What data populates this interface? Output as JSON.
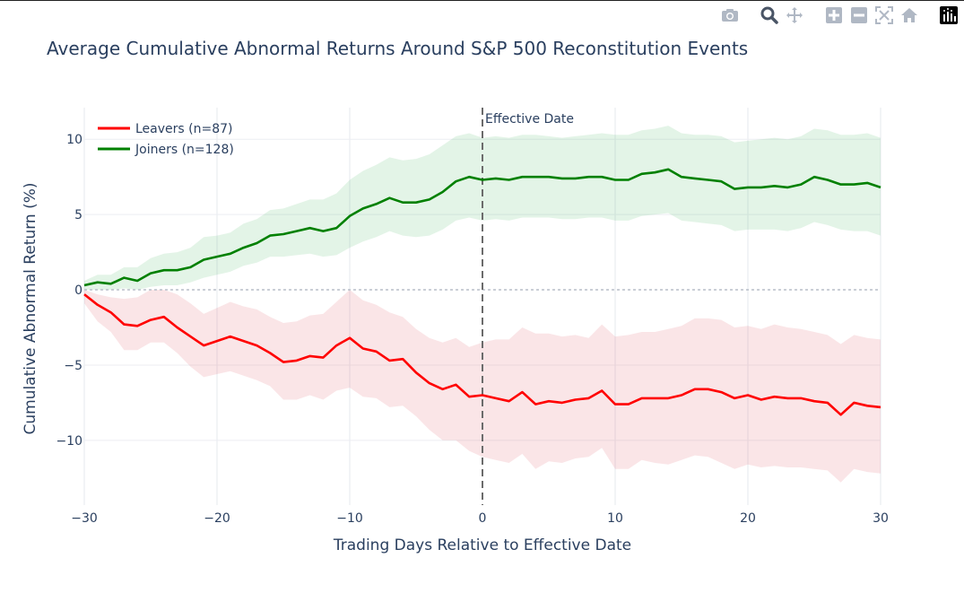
{
  "modebar": {
    "buttons": [
      {
        "icon": "camera-icon",
        "name": "download-plot-button"
      },
      {
        "icon": "zoom-icon",
        "name": "zoom-button"
      },
      {
        "icon": "pan-icon",
        "name": "pan-button"
      },
      {
        "icon": "zoom-in-icon",
        "name": "zoom-in-button"
      },
      {
        "icon": "zoom-out-icon",
        "name": "zoom-out-button"
      },
      {
        "icon": "autoscale-icon",
        "name": "autoscale-button"
      },
      {
        "icon": "home-icon",
        "name": "reset-axes-button"
      },
      {
        "icon": "plotly-logo-icon",
        "name": "plotly-logo"
      }
    ]
  },
  "chart_data": {
    "type": "line",
    "title": "Average Cumulative Abnormal Returns Around S&P 500 Reconstitution Events",
    "xlabel": "Trading Days Relative to Effective Date",
    "ylabel": "Cumulative Abnormal Return (%)",
    "xlim": [
      -30,
      30
    ],
    "ylim": [
      -14.3,
      12.1
    ],
    "xticks": [
      -30,
      -20,
      -10,
      0,
      10,
      20,
      30
    ],
    "xtick_labels": [
      "−30",
      "−20",
      "−10",
      "0",
      "10",
      "20",
      "30"
    ],
    "yticks": [
      -10,
      -5,
      0,
      5,
      10
    ],
    "ytick_labels": [
      "−10",
      "−5",
      "0",
      "5",
      "10"
    ],
    "grid": true,
    "legend_position": "top-left",
    "annotation": {
      "text": "Effective Date",
      "x": 0
    },
    "zero_line": true,
    "x": [
      -30,
      -29,
      -28,
      -27,
      -26,
      -25,
      -24,
      -23,
      -22,
      -21,
      -20,
      -19,
      -18,
      -17,
      -16,
      -15,
      -14,
      -13,
      -12,
      -11,
      -10,
      -9,
      -8,
      -7,
      -6,
      -5,
      -4,
      -3,
      -2,
      -1,
      0,
      1,
      2,
      3,
      4,
      5,
      6,
      7,
      8,
      9,
      10,
      11,
      12,
      13,
      14,
      15,
      16,
      17,
      18,
      19,
      20,
      21,
      22,
      23,
      24,
      25,
      26,
      27,
      28,
      29,
      30
    ],
    "series": [
      {
        "name": "Leavers (n=87)",
        "color": "#ff0000",
        "band_color": "rgba(220,53,69,0.13)",
        "values": [
          -0.3,
          -1.0,
          -1.5,
          -2.3,
          -2.4,
          -2.0,
          -1.8,
          -2.5,
          -3.1,
          -3.7,
          -3.4,
          -3.1,
          -3.4,
          -3.7,
          -4.2,
          -4.8,
          -4.7,
          -4.4,
          -4.5,
          -3.7,
          -3.2,
          -3.9,
          -4.1,
          -4.7,
          -4.6,
          -5.5,
          -6.2,
          -6.6,
          -6.3,
          -7.1,
          -7.0,
          -7.2,
          -7.4,
          -6.8,
          -7.6,
          -7.4,
          -7.5,
          -7.3,
          -7.2,
          -6.7,
          -7.6,
          -7.6,
          -7.2,
          -7.2,
          -7.2,
          -7.0,
          -6.6,
          -6.6,
          -6.8,
          -7.2,
          -7.0,
          -7.3,
          -7.1,
          -7.2,
          -7.2,
          -7.4,
          -7.5,
          -8.3,
          -7.5,
          -7.7,
          -7.8
        ],
        "upper": [
          0.0,
          -0.3,
          -0.5,
          -0.6,
          -0.5,
          0.0,
          0.0,
          -0.3,
          -0.9,
          -1.6,
          -1.2,
          -0.8,
          -1.1,
          -1.3,
          -1.8,
          -2.2,
          -2.1,
          -1.7,
          -1.6,
          -0.8,
          0.0,
          -0.7,
          -1.0,
          -1.5,
          -1.8,
          -2.6,
          -3.2,
          -3.5,
          -3.2,
          -3.8,
          -3.5,
          -3.3,
          -3.3,
          -2.5,
          -2.9,
          -2.9,
          -3.1,
          -3.0,
          -3.2,
          -2.3,
          -3.1,
          -3.0,
          -2.8,
          -2.8,
          -2.6,
          -2.4,
          -1.9,
          -1.9,
          -2.0,
          -2.5,
          -2.4,
          -2.6,
          -2.3,
          -2.5,
          -2.6,
          -2.8,
          -3.0,
          -3.6,
          -3.0,
          -3.2,
          -3.3
        ],
        "lower": [
          -0.9,
          -2.1,
          -2.8,
          -4.0,
          -4.0,
          -3.5,
          -3.5,
          -4.2,
          -5.1,
          -5.8,
          -5.6,
          -5.4,
          -5.7,
          -6.0,
          -6.4,
          -7.3,
          -7.3,
          -7.0,
          -7.3,
          -6.7,
          -6.5,
          -7.1,
          -7.2,
          -7.8,
          -7.7,
          -8.4,
          -9.3,
          -10.0,
          -10.0,
          -10.7,
          -11.1,
          -11.3,
          -11.5,
          -10.9,
          -11.9,
          -11.4,
          -11.5,
          -11.2,
          -11.1,
          -10.5,
          -11.9,
          -11.9,
          -11.3,
          -11.5,
          -11.6,
          -11.3,
          -11.0,
          -11.1,
          -11.5,
          -11.9,
          -11.6,
          -11.8,
          -11.7,
          -11.8,
          -11.8,
          -11.9,
          -12.0,
          -12.8,
          -11.9,
          -12.1,
          -12.2
        ]
      },
      {
        "name": "Joiners (n=128)",
        "color": "#008000",
        "band_color": "rgba(40,167,69,0.13)",
        "values": [
          0.3,
          0.5,
          0.4,
          0.8,
          0.6,
          1.1,
          1.3,
          1.3,
          1.5,
          2.0,
          2.2,
          2.4,
          2.8,
          3.1,
          3.6,
          3.7,
          3.9,
          4.1,
          3.9,
          4.1,
          4.9,
          5.4,
          5.7,
          6.1,
          5.8,
          5.8,
          6.0,
          6.5,
          7.2,
          7.5,
          7.3,
          7.4,
          7.3,
          7.5,
          7.5,
          7.5,
          7.4,
          7.4,
          7.5,
          7.5,
          7.3,
          7.3,
          7.7,
          7.8,
          8.0,
          7.5,
          7.4,
          7.3,
          7.2,
          6.7,
          6.8,
          6.8,
          6.9,
          6.8,
          7.0,
          7.5,
          7.3,
          7.0,
          7.0,
          7.1,
          6.8
        ],
        "upper": [
          0.6,
          1.0,
          1.0,
          1.5,
          1.5,
          2.1,
          2.4,
          2.5,
          2.8,
          3.5,
          3.6,
          3.8,
          4.4,
          4.7,
          5.3,
          5.4,
          5.7,
          6.0,
          6.0,
          6.4,
          7.3,
          7.9,
          8.3,
          8.8,
          8.6,
          8.7,
          9.0,
          9.6,
          10.2,
          10.4,
          10.1,
          10.2,
          10.1,
          10.3,
          10.3,
          10.2,
          10.1,
          10.2,
          10.3,
          10.4,
          10.3,
          10.3,
          10.6,
          10.7,
          10.9,
          10.4,
          10.3,
          10.3,
          10.2,
          9.8,
          9.9,
          10.0,
          10.1,
          10.0,
          10.2,
          10.7,
          10.6,
          10.3,
          10.3,
          10.4,
          10.1
        ],
        "lower": [
          0.0,
          0.0,
          0.0,
          0.1,
          0.0,
          0.2,
          0.3,
          0.3,
          0.5,
          0.8,
          1.0,
          1.2,
          1.6,
          1.8,
          2.2,
          2.2,
          2.3,
          2.4,
          2.2,
          2.3,
          2.8,
          3.2,
          3.5,
          3.9,
          3.6,
          3.5,
          3.6,
          4.0,
          4.6,
          4.8,
          4.6,
          4.7,
          4.6,
          4.8,
          4.8,
          4.8,
          4.7,
          4.7,
          4.8,
          4.8,
          4.6,
          4.6,
          4.9,
          5.0,
          5.1,
          4.6,
          4.5,
          4.4,
          4.3,
          3.9,
          4.0,
          4.0,
          4.0,
          3.9,
          4.1,
          4.5,
          4.3,
          4.0,
          3.9,
          3.9,
          3.6
        ]
      }
    ]
  }
}
